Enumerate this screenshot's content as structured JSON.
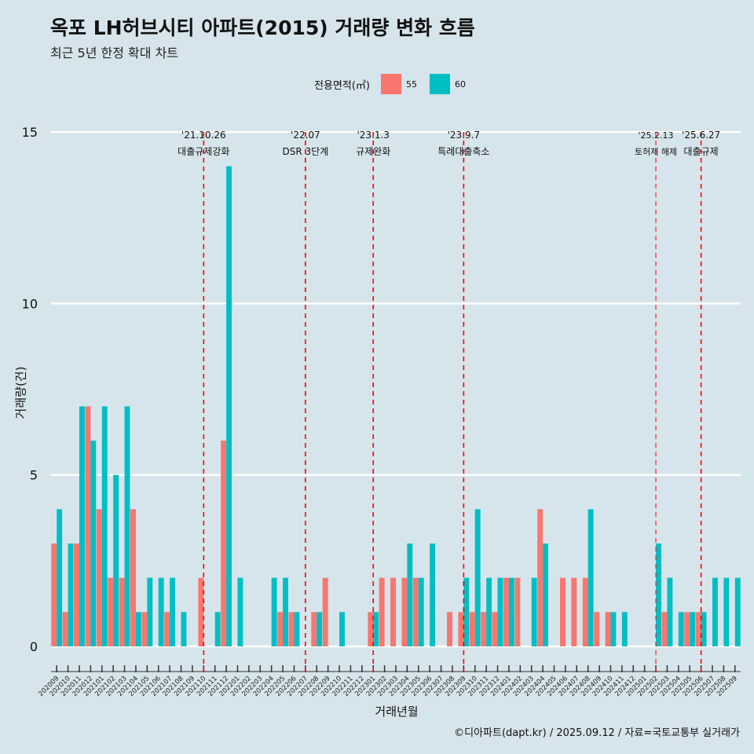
{
  "title": "옥포 LH허브시티 아파트(2015) 거래량 변화 흐름",
  "subtitle": "최근 5년 한정 확대 차트",
  "caption": "©디아파트(dapt.kr) / 2025.09.12 / 자료=국토교통부 실거래가",
  "legend": {
    "title": "전용면적(㎡)",
    "items": [
      {
        "label": "55",
        "color": "#F8766D"
      },
      {
        "label": "60",
        "color": "#00BFC4"
      }
    ]
  },
  "chart_data": {
    "type": "bar",
    "xlabel": "거래년월",
    "ylabel": "거래량(건)",
    "ylim": [
      0,
      15
    ],
    "yticks": [
      0,
      5,
      10,
      15
    ],
    "grid": true,
    "legend_position": "top",
    "categories": [
      "202009",
      "202010",
      "202011",
      "202012",
      "202101",
      "202102",
      "202103",
      "202104",
      "202105",
      "202106",
      "202107",
      "202108",
      "202109",
      "202110",
      "202111",
      "202112",
      "202201",
      "202202",
      "202203",
      "202204",
      "202205",
      "202206",
      "202207",
      "202208",
      "202209",
      "202210",
      "202211",
      "202212",
      "202301",
      "202302",
      "202303",
      "202304",
      "202305",
      "202306",
      "202307",
      "202308",
      "202309",
      "202310",
      "202311",
      "202312",
      "202401",
      "202402",
      "202403",
      "202404",
      "202405",
      "202406",
      "202407",
      "202408",
      "202409",
      "202410",
      "202411",
      "202412",
      "202501",
      "202502",
      "202503",
      "202504",
      "202505",
      "202506",
      "202507",
      "202508",
      "202509"
    ],
    "series": [
      {
        "name": "55",
        "color": "#F8766D",
        "values": [
          3,
          1,
          3,
          7,
          4,
          2,
          2,
          4,
          1,
          0,
          1,
          0,
          0,
          2,
          0,
          6,
          0,
          0,
          0,
          0,
          1,
          1,
          0,
          1,
          2,
          0,
          0,
          0,
          1,
          2,
          2,
          2,
          2,
          0,
          0,
          1,
          1,
          1,
          1,
          1,
          2,
          2,
          0,
          4,
          0,
          2,
          2,
          2,
          1,
          1,
          0,
          0,
          0,
          0,
          1,
          0,
          1,
          1,
          0,
          0,
          0
        ]
      },
      {
        "name": "60",
        "color": "#00BFC4",
        "values": [
          4,
          3,
          7,
          6,
          7,
          5,
          7,
          1,
          2,
          2,
          2,
          1,
          0,
          0,
          1,
          14,
          2,
          0,
          0,
          2,
          2,
          1,
          0,
          1,
          0,
          1,
          0,
          0,
          1,
          0,
          0,
          3,
          2,
          3,
          0,
          0,
          2,
          4,
          2,
          2,
          2,
          0,
          2,
          3,
          0,
          0,
          0,
          4,
          0,
          1,
          1,
          0,
          0,
          3,
          2,
          1,
          1,
          1,
          2,
          2,
          2
        ]
      }
    ],
    "annotations": [
      {
        "x": "202110",
        "date": "'21.10.26",
        "text": "대출규제강화",
        "style": "dashed"
      },
      {
        "x": "202207",
        "date": "'22.07",
        "text": "DSR 3단계",
        "style": "dashed"
      },
      {
        "x": "202301",
        "date": "'23.1.3",
        "text": "규제완화",
        "style": "dashed"
      },
      {
        "x": "202309",
        "date": "'23.9.7",
        "text": "특례대출축소",
        "style": "dashed"
      },
      {
        "x": "202502",
        "date": "'25.2.13",
        "text": "토허제 해제",
        "style": "dashed-thin"
      },
      {
        "x": "202506",
        "date": "'25.6.27",
        "text": "대출규제",
        "style": "dashed"
      }
    ]
  }
}
